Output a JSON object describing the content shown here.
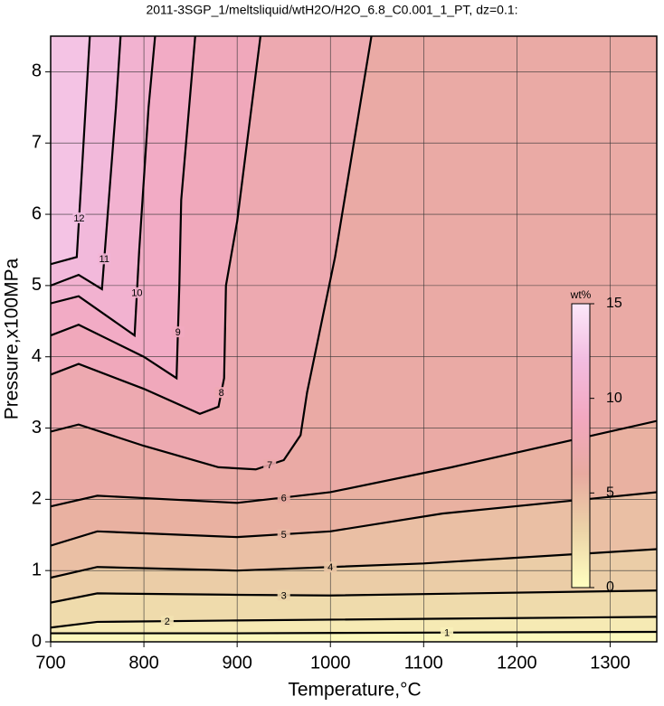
{
  "chart_data": {
    "type": "contour",
    "title": "2011-3SGP_1/meltsliquid/wtH2O/H2O_6.8_C0.001_1_PT, dz=0.1:",
    "xlabel": "Temperature,°C",
    "ylabel": "Pressure,x100MPa",
    "xlim": [
      700,
      1350
    ],
    "ylim": [
      0,
      8.5
    ],
    "xticks": [
      700,
      800,
      900,
      1000,
      1100,
      1200,
      1300
    ],
    "yticks": [
      0,
      1,
      2,
      3,
      4,
      5,
      6,
      7,
      8
    ],
    "grid": true,
    "colorbar": {
      "label": "wt%",
      "clim": [
        0,
        15
      ],
      "ticks": [
        0,
        5,
        10,
        15
      ],
      "colormap": [
        "#ffffc0",
        "#ecd4a8",
        "#e8aaa0",
        "#f2a8c0",
        "#f2bce0",
        "#fce8fa"
      ]
    },
    "contours": [
      {
        "level": 1,
        "x": [
          700,
          900,
          1350
        ],
        "y": [
          0.12,
          0.12,
          0.14
        ]
      },
      {
        "level": 2,
        "x": [
          700,
          750,
          900,
          1350
        ],
        "y": [
          0.2,
          0.28,
          0.3,
          0.35
        ]
      },
      {
        "level": 3,
        "x": [
          700,
          750,
          900,
          1000,
          1350
        ],
        "y": [
          0.55,
          0.68,
          0.66,
          0.65,
          0.72
        ]
      },
      {
        "level": 4,
        "x": [
          700,
          750,
          900,
          1100,
          1350
        ],
        "y": [
          0.9,
          1.05,
          1.0,
          1.1,
          1.3
        ]
      },
      {
        "level": 5,
        "x": [
          700,
          750,
          900,
          1000,
          1120,
          1350
        ],
        "y": [
          1.35,
          1.55,
          1.47,
          1.55,
          1.8,
          2.1
        ]
      },
      {
        "level": 6,
        "x": [
          700,
          750,
          900,
          1000,
          1130,
          1350
        ],
        "y": [
          1.9,
          2.05,
          1.95,
          2.1,
          2.45,
          3.1
        ]
      },
      {
        "level": 7,
        "x": [
          700,
          730,
          800,
          880,
          920,
          950,
          968,
          975,
          1005,
          1044
        ],
        "y": [
          2.95,
          3.05,
          2.75,
          2.45,
          2.42,
          2.55,
          2.9,
          3.5,
          5.4,
          8.5
        ]
      },
      {
        "level": 8,
        "x": [
          700,
          730,
          800,
          860,
          880,
          886,
          888,
          900,
          925
        ],
        "y": [
          3.75,
          3.9,
          3.55,
          3.2,
          3.3,
          3.7,
          5.0,
          5.9,
          8.5
        ]
      },
      {
        "level": 9,
        "x": [
          700,
          730,
          800,
          835,
          838,
          840,
          855
        ],
        "y": [
          4.3,
          4.45,
          4.0,
          3.7,
          5.0,
          6.2,
          8.5
        ]
      },
      {
        "level": 10,
        "x": [
          700,
          730,
          790,
          795,
          805,
          812
        ],
        "y": [
          4.75,
          4.85,
          4.3,
          5.5,
          7.5,
          8.5
        ]
      },
      {
        "level": 11,
        "x": [
          700,
          730,
          755,
          760,
          770,
          775
        ],
        "y": [
          5.0,
          5.15,
          4.95,
          5.8,
          7.5,
          8.5
        ]
      },
      {
        "level": 12,
        "x": [
          700,
          728,
          733,
          742
        ],
        "y": [
          5.3,
          5.4,
          6.5,
          8.5
        ]
      }
    ]
  }
}
